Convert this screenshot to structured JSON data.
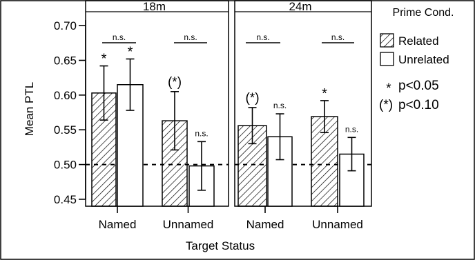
{
  "chart_data": {
    "type": "bar",
    "ylabel": "Mean PTL",
    "xlabel": "Target Status",
    "ylim": [
      0.44,
      0.72
    ],
    "yticks": [
      "0.70",
      "0.65",
      "0.60",
      "0.55",
      "0.50",
      "0.45"
    ],
    "reference_line": 0.5,
    "legend": {
      "title": "Prime Cond.",
      "placement": "right",
      "entries": [
        {
          "label": "Related",
          "pattern": "hatched"
        },
        {
          "label": "Unrelated",
          "pattern": "open"
        }
      ],
      "notes": [
        {
          "symbol": "*",
          "text": "p<0.05"
        },
        {
          "symbol": "(*)",
          "text": "p<0.10"
        }
      ]
    },
    "panels": [
      {
        "title": "18m",
        "categories": [
          "Named",
          "Unnamed"
        ],
        "series": [
          {
            "name": "Related",
            "values": [
              0.603,
              0.563
            ],
            "errors": [
              0.039,
              0.042
            ],
            "annotations": [
              "*",
              "(*)"
            ]
          },
          {
            "name": "Unrelated",
            "values": [
              0.615,
              0.498
            ],
            "errors": [
              0.037,
              0.035
            ],
            "annotations": [
              "*",
              "n.s."
            ]
          }
        ],
        "comparisons": [
          "n.s.",
          "n.s."
        ]
      },
      {
        "title": "24m",
        "categories": [
          "Named",
          "Unnamed"
        ],
        "series": [
          {
            "name": "Related",
            "values": [
              0.556,
              0.569
            ],
            "errors": [
              0.026,
              0.023
            ],
            "annotations": [
              "(*)",
              "*"
            ]
          },
          {
            "name": "Unrelated",
            "values": [
              0.54,
              0.515
            ],
            "errors": [
              0.033,
              0.024
            ],
            "annotations": [
              "n.s.",
              "n.s."
            ]
          }
        ],
        "comparisons": [
          "n.s.",
          "n.s."
        ]
      }
    ]
  }
}
